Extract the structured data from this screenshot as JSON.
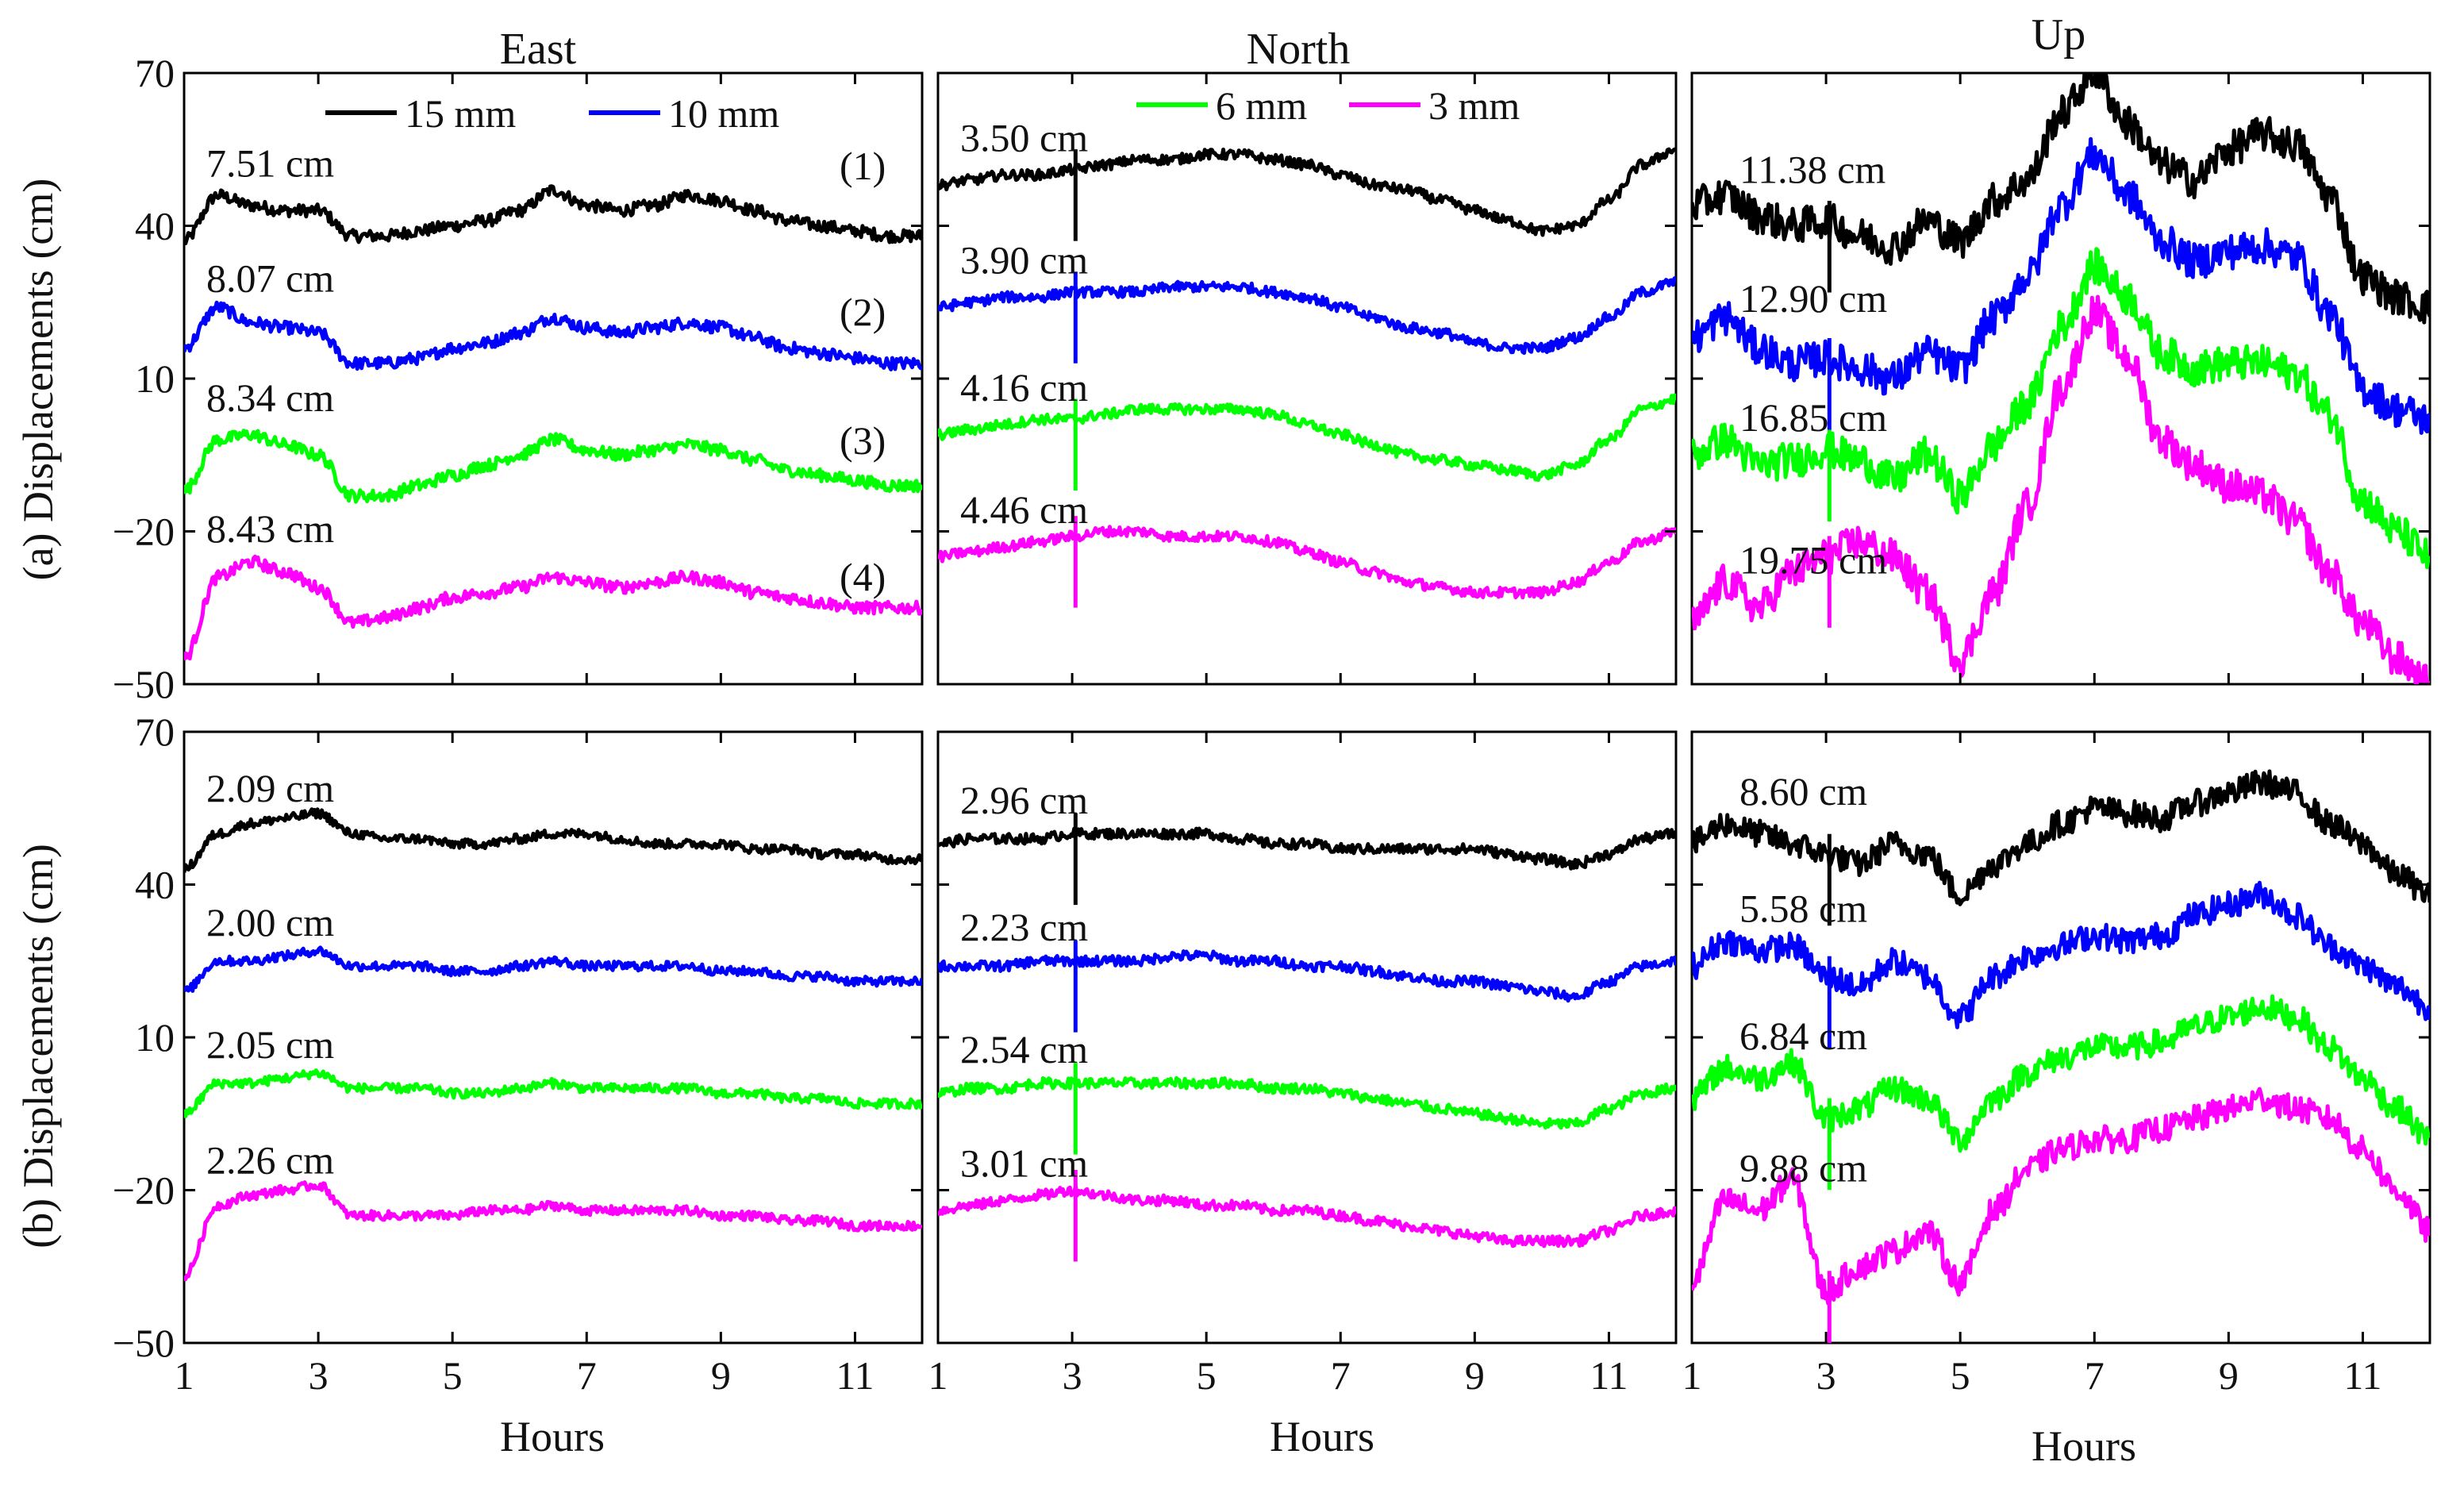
{
  "figure": {
    "column_titles": [
      "East",
      "North",
      "Up"
    ],
    "row_ylabels": [
      "(a) Displacements (cm)",
      "(b) Displacements (cm)"
    ],
    "xlabel": "Hours",
    "curve_tags": [
      "(1)",
      "(2)",
      "(3)",
      "(4)"
    ]
  },
  "legend": [
    {
      "label": "15 mm",
      "color": "#000000"
    },
    {
      "label": "10 mm",
      "color": "#0000ff"
    },
    {
      "label": "6 mm",
      "color": "#00ff00"
    },
    {
      "label": "3 mm",
      "color": "#ff00ff"
    }
  ],
  "chart_data": {
    "type": "line",
    "layout": "2 rows x 3 columns of subplots",
    "xlim": [
      1,
      12
    ],
    "ylim": [
      -50,
      70
    ],
    "xticks": [
      1,
      3,
      5,
      7,
      9,
      11
    ],
    "yticks": [
      -50,
      -20,
      10,
      40,
      70
    ],
    "xlabel": "Hours",
    "series_names": [
      "15 mm",
      "10 mm",
      "6 mm",
      "3 mm"
    ],
    "series_colors": [
      "#000000",
      "#0000ff",
      "#00ff00",
      "#ff00ff"
    ],
    "x": [
      1,
      1.5,
      2,
      2.5,
      3,
      3.5,
      4,
      4.5,
      5,
      5.5,
      6,
      6.5,
      7,
      7.5,
      8,
      8.5,
      9,
      9.5,
      10,
      10.5,
      11,
      11.5,
      12
    ],
    "panels": [
      {
        "row": "(a)",
        "column": "East",
        "rms_labels": [
          "7.51 cm",
          "8.07 cm",
          "8.34 cm",
          "8.43 cm"
        ],
        "series": [
          {
            "name": "15 mm",
            "values": [
              37,
              46,
              44,
              43,
              43,
              38,
              38,
              39,
              40,
              41,
              43,
              47,
              44,
              43,
              44,
              46,
              45,
              43,
              41,
              40,
              39,
              38,
              38
            ]
          },
          {
            "name": "10 mm",
            "values": [
              16,
              24,
              21,
              20,
              19,
              13,
              13,
              14,
              16,
              17,
              19,
              22,
              20,
              19,
              20,
              21,
              20,
              18,
              16,
              15,
              14,
              13,
              13
            ]
          },
          {
            "name": "6 mm",
            "values": [
              -12,
              -2,
              -1,
              -3,
              -5,
              -13,
              -13,
              -11,
              -9,
              -7,
              -5,
              -2,
              -4,
              -5,
              -4,
              -3,
              -4,
              -6,
              -8,
              -9,
              -10,
              -11,
              -11
            ]
          },
          {
            "name": "3 mm",
            "values": [
              -45,
              -29,
              -26,
              -28,
              -31,
              -38,
              -37,
              -35,
              -33,
              -32,
              -31,
              -29,
              -30,
              -31,
              -30,
              -29,
              -30,
              -32,
              -33,
              -34,
              -35,
              -35,
              -35
            ]
          }
        ]
      },
      {
        "row": "(a)",
        "column": "North",
        "rms_labels": [
          "3.50 cm",
          "3.90 cm",
          "4.16 cm",
          "4.46 cm"
        ],
        "series": [
          {
            "name": "15 mm",
            "values": [
              48,
              49,
              50,
              50,
              51,
              52,
              53,
              53,
              54,
              54,
              53,
              52,
              50,
              48,
              47,
              45,
              43,
              41,
              39,
              40,
              45,
              52,
              55
            ]
          },
          {
            "name": "10 mm",
            "values": [
              24,
              25,
              26,
              26,
              27,
              27,
              27,
              28,
              28,
              28,
              27,
              26,
              24,
              22,
              20,
              19,
              17,
              16,
              16,
              18,
              22,
              27,
              29
            ]
          },
          {
            "name": "6 mm",
            "values": [
              -1,
              0,
              1,
              2,
              2,
              3,
              4,
              4,
              4,
              4,
              3,
              1,
              -1,
              -3,
              -5,
              -6,
              -7,
              -8,
              -9,
              -7,
              -2,
              4,
              6
            ]
          },
          {
            "name": "3 mm",
            "values": [
              -25,
              -24,
              -23,
              -22,
              -21,
              -20,
              -20,
              -21,
              -21,
              -21,
              -22,
              -24,
              -26,
              -28,
              -30,
              -31,
              -32,
              -32,
              -32,
              -30,
              -26,
              -22,
              -20
            ]
          }
        ]
      },
      {
        "row": "(a)",
        "column": "Up",
        "rms_labels": [
          "11.38 cm",
          "12.90 cm",
          "16.85 cm",
          "19.75 cm"
        ],
        "series": [
          {
            "name": "15 mm",
            "values": [
              44,
              46,
              42,
              40,
              41,
              38,
              36,
              41,
              37,
              45,
              49,
              62,
              70,
              60,
              52,
              49,
              55,
              58,
              56,
              46,
              30,
              26,
              24
            ]
          },
          {
            "name": "10 mm",
            "values": [
              18,
              22,
              16,
              13,
              14,
              12,
              10,
              15,
              12,
              22,
              30,
              44,
              54,
              46,
              37,
              33,
              35,
              36,
              34,
              23,
              8,
              4,
              2
            ]
          },
          {
            "name": "6 mm",
            "values": [
              -5,
              -2,
              -7,
              -6,
              -4,
              -6,
              -10,
              -5,
              -13,
              -3,
              5,
              20,
              32,
              26,
              15,
              12,
              13,
              13,
              11,
              3,
              -14,
              -20,
              -25
            ]
          },
          {
            "name": "3 mm",
            "values": [
              -38,
              -30,
              -35,
              -28,
              -25,
              -22,
              -25,
              -32,
              -45,
              -32,
              -15,
              8,
              23,
              14,
              -2,
              -7,
              -11,
              -13,
              -18,
              -28,
              -38,
              -45,
              -50
            ]
          }
        ]
      },
      {
        "row": "(b)",
        "column": "East",
        "rms_labels": [
          "2.09 cm",
          "2.00 cm",
          "2.05 cm",
          "2.26 cm"
        ],
        "series": [
          {
            "name": "15 mm",
            "values": [
              43,
              50,
              52,
              53,
              54,
              50,
              49,
              49,
              48,
              48,
              49,
              50,
              50,
              49,
              48,
              48,
              48,
              47,
              47,
              46,
              46,
              45,
              45
            ]
          },
          {
            "name": "10 mm",
            "values": [
              19,
              25,
              25,
              26,
              27,
              24,
              24,
              24,
              23,
              23,
              24,
              25,
              24,
              24,
              24,
              24,
              23,
              23,
              22,
              22,
              21,
              21,
              21
            ]
          },
          {
            "name": "6 mm",
            "values": [
              -5,
              1,
              1,
              2,
              3,
              0,
              0,
              0,
              -1,
              -1,
              0,
              1,
              0,
              0,
              0,
              0,
              -1,
              -1,
              -2,
              -2,
              -3,
              -3,
              -3
            ]
          },
          {
            "name": "3 mm",
            "values": [
              -37,
              -23,
              -21,
              -20,
              -19,
              -25,
              -25,
              -25,
              -25,
              -24,
              -24,
              -23,
              -24,
              -24,
              -24,
              -24,
              -25,
              -25,
              -26,
              -26,
              -27,
              -27,
              -27
            ]
          }
        ]
      },
      {
        "row": "(b)",
        "column": "North",
        "rms_labels": [
          "2.96 cm",
          "2.23 cm",
          "2.54 cm",
          "3.01 cm"
        ],
        "series": [
          {
            "name": "15 mm",
            "values": [
              48,
              49,
              49,
              49,
              50,
              50,
              50,
              50,
              50,
              49,
              48,
              48,
              47,
              47,
              47,
              47,
              47,
              46,
              45,
              44,
              46,
              49,
              50
            ]
          },
          {
            "name": "10 mm",
            "values": [
              24,
              24,
              24,
              25,
              25,
              25,
              25,
              26,
              26,
              25,
              25,
              24,
              24,
              23,
              22,
              21,
              21,
              20,
              19,
              18,
              21,
              24,
              25
            ]
          },
          {
            "name": "6 mm",
            "values": [
              -1,
              0,
              0,
              1,
              1,
              1,
              1,
              1,
              1,
              1,
              0,
              0,
              -1,
              -2,
              -3,
              -4,
              -5,
              -6,
              -7,
              -7,
              -4,
              -1,
              0
            ]
          },
          {
            "name": "3 mm",
            "values": [
              -24,
              -23,
              -22,
              -21,
              -20,
              -21,
              -22,
              -22,
              -23,
              -23,
              -24,
              -24,
              -25,
              -26,
              -27,
              -28,
              -29,
              -30,
              -30,
              -30,
              -28,
              -25,
              -24
            ]
          }
        ]
      },
      {
        "row": "(b)",
        "column": "Up",
        "rms_labels": [
          "8.60 cm",
          "5.58 cm",
          "6.84 cm",
          "9.88 cm"
        ],
        "series": [
          {
            "name": "15 mm",
            "values": [
              48,
              52,
              50,
              48,
              46,
              44,
              48,
              46,
              38,
              44,
              48,
              52,
              55,
              54,
              53,
              56,
              58,
              60,
              58,
              52,
              48,
              42,
              38
            ]
          },
          {
            "name": "10 mm",
            "values": [
              24,
              29,
              27,
              28,
              22,
              20,
              25,
              22,
              14,
              22,
              26,
              28,
              30,
              29,
              30,
              34,
              36,
              38,
              34,
              28,
              24,
              20,
              16
            ]
          },
          {
            "name": "6 mm",
            "values": [
              -2,
              4,
              2,
              5,
              -6,
              -4,
              0,
              -2,
              -10,
              -2,
              3,
              6,
              8,
              8,
              9,
              12,
              14,
              16,
              14,
              8,
              2,
              -4,
              -10
            ]
          },
          {
            "name": "3 mm",
            "values": [
              -38,
              -22,
              -24,
              -18,
              -40,
              -35,
              -32,
              -28,
              -38,
              -24,
              -16,
              -12,
              -10,
              -10,
              -8,
              -6,
              -4,
              -2,
              -4,
              -6,
              -12,
              -20,
              -28
            ]
          }
        ]
      }
    ]
  }
}
